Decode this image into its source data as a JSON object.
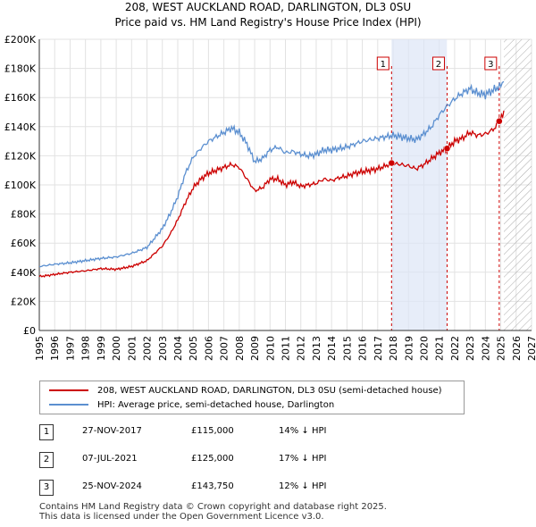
{
  "chart_data": {
    "type": "line",
    "title": "208, WEST AUCKLAND ROAD, DARLINGTON, DL3 0SU",
    "subtitle": "Price paid vs. HM Land Registry's House Price Index (HPI)",
    "xlim": [
      1995,
      2027
    ],
    "ylim": [
      0,
      200000
    ],
    "x_ticks": [
      1995,
      1996,
      1997,
      1998,
      1999,
      2000,
      2001,
      2002,
      2003,
      2004,
      2005,
      2006,
      2007,
      2008,
      2009,
      2010,
      2011,
      2012,
      2013,
      2014,
      2015,
      2016,
      2017,
      2018,
      2019,
      2020,
      2021,
      2022,
      2023,
      2024,
      2025,
      2026,
      2027
    ],
    "y_ticks": [
      0,
      20000,
      40000,
      60000,
      80000,
      100000,
      120000,
      140000,
      160000,
      180000,
      200000
    ],
    "y_tick_labels": [
      "£0",
      "£20K",
      "£40K",
      "£60K",
      "£80K",
      "£100K",
      "£120K",
      "£140K",
      "£160K",
      "£180K",
      "£200K"
    ],
    "grid": true,
    "future_hatch_from": 2025.2,
    "shaded_period": [
      2017.9,
      2021.5
    ],
    "series": [
      {
        "name": "208, WEST AUCKLAND ROAD, DARLINGTON, DL3 0SU (semi-detached house)",
        "color": "#cc0000",
        "x": [
          1995,
          1996,
          1997,
          1998,
          1999,
          2000,
          2001,
          2002,
          2003,
          2003.5,
          2004,
          2004.5,
          2005,
          2005.5,
          2006,
          2006.5,
          2007,
          2007.5,
          2008,
          2008.5,
          2009,
          2009.5,
          2010,
          2010.5,
          2011,
          2011.5,
          2012,
          2012.5,
          2013,
          2013.5,
          2014,
          2014.5,
          2015,
          2015.5,
          2016,
          2016.5,
          2017,
          2017.5,
          2017.9,
          2018.5,
          2019,
          2019.5,
          2020,
          2020.5,
          2021,
          2021.5,
          2022,
          2022.5,
          2023,
          2023.5,
          2024,
          2024.5,
          2024.9,
          2025.2
        ],
        "values": [
          37000,
          38500,
          40000,
          41000,
          42500,
          42000,
          44000,
          48000,
          58000,
          66000,
          76000,
          88000,
          98000,
          104000,
          108000,
          110000,
          112000,
          114000,
          112000,
          104000,
          96000,
          98000,
          104000,
          104000,
          100000,
          102000,
          99000,
          100000,
          101000,
          104000,
          103000,
          105000,
          106000,
          108000,
          109000,
          110000,
          111000,
          113000,
          115000,
          114000,
          113000,
          111000,
          114000,
          118000,
          122000,
          125000,
          130000,
          132000,
          136000,
          134000,
          135000,
          138000,
          143750,
          151000
        ]
      },
      {
        "name": "HPI: Average price, semi-detached house, Darlington",
        "color": "#5b8fd0",
        "x": [
          1995,
          1996,
          1997,
          1998,
          1999,
          2000,
          2001,
          2002,
          2003,
          2003.5,
          2004,
          2004.5,
          2005,
          2005.5,
          2006,
          2006.5,
          2007,
          2007.5,
          2008,
          2008.5,
          2009,
          2009.5,
          2010,
          2010.5,
          2011,
          2011.5,
          2012,
          2012.5,
          2013,
          2013.5,
          2014,
          2014.5,
          2015,
          2015.5,
          2016,
          2016.5,
          2017,
          2017.5,
          2018,
          2018.5,
          2019,
          2019.5,
          2020,
          2020.5,
          2021,
          2021.5,
          2022,
          2022.5,
          2023,
          2023.5,
          2024,
          2024.5,
          2025,
          2025.2
        ],
        "values": [
          44000,
          45500,
          46500,
          48000,
          49500,
          50500,
          53000,
          57000,
          70000,
          80000,
          92000,
          108000,
          119000,
          125000,
          130000,
          133000,
          136000,
          139000,
          136000,
          128000,
          116000,
          118000,
          124000,
          126000,
          122000,
          123000,
          121000,
          120000,
          121000,
          124000,
          124000,
          125000,
          126000,
          128000,
          130000,
          131000,
          132000,
          133000,
          134000,
          133000,
          132000,
          131000,
          135000,
          140000,
          148000,
          154000,
          159000,
          163000,
          166000,
          163000,
          162000,
          165000,
          168000,
          171000
        ]
      }
    ],
    "transactions": [
      {
        "label": "1",
        "x": 2017.9,
        "price": 115000
      },
      {
        "label": "2",
        "x": 2021.51,
        "price": 125000
      },
      {
        "label": "3",
        "x": 2024.9,
        "price": 143750
      }
    ]
  },
  "legend": {
    "property_label": "208, WEST AUCKLAND ROAD, DARLINGTON, DL3 0SU (semi-detached house)",
    "hpi_label": "HPI: Average price, semi-detached house, Darlington",
    "property_color": "#cc0000",
    "hpi_color": "#5b8fd0"
  },
  "table": [
    {
      "num": "1",
      "date": "27-NOV-2017",
      "price": "£115,000",
      "hpi": "14% ↓ HPI"
    },
    {
      "num": "2",
      "date": "07-JUL-2021",
      "price": "£125,000",
      "hpi": "17% ↓ HPI"
    },
    {
      "num": "3",
      "date": "25-NOV-2024",
      "price": "£143,750",
      "hpi": "12% ↓ HPI"
    }
  ],
  "footer": {
    "line1": "Contains HM Land Registry data © Crown copyright and database right 2025.",
    "line2": "This data is licensed under the Open Government Licence v3.0."
  }
}
